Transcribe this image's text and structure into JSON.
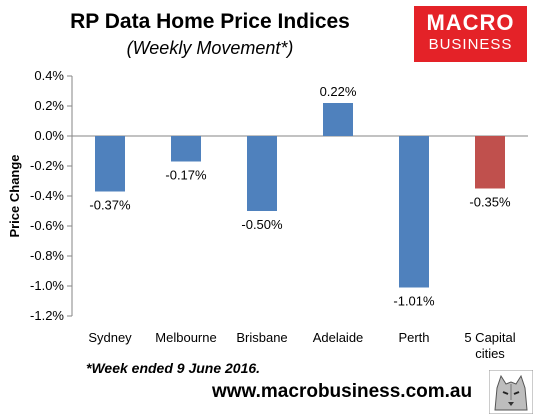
{
  "header": {
    "title": "RP Data Home Price Indices",
    "subtitle": "(Weekly Movement*)"
  },
  "logo": {
    "line1": "MACRO",
    "line2": "BUSINESS",
    "color": "#e42228"
  },
  "footnote": "*Week ended 9 June 2016.",
  "website": "www.macrobusiness.com.au",
  "colors": {
    "city_bar": "#4f81bd",
    "capital_bar": "#c0504d"
  },
  "chart_data": {
    "type": "bar",
    "ylabel": "Price Change",
    "ylim": [
      -1.2,
      0.4
    ],
    "yticks": [
      0.4,
      0.2,
      0.0,
      -0.2,
      -0.4,
      -0.6,
      -0.8,
      -1.0,
      -1.2
    ],
    "ytick_labels": [
      "0.4%",
      "0.2%",
      "0.0%",
      "-0.2%",
      "-0.4%",
      "-0.6%",
      "-0.8%",
      "-1.0%",
      "-1.2%"
    ],
    "categories": [
      [
        "Sydney"
      ],
      [
        "Melbourne"
      ],
      [
        "Brisbane"
      ],
      [
        "Adelaide"
      ],
      [
        "Perth"
      ],
      [
        "5 Capital",
        "cities"
      ]
    ],
    "values": [
      -0.37,
      -0.17,
      -0.5,
      0.22,
      -1.01,
      -0.35
    ],
    "data_labels": [
      "-0.37%",
      "-0.17%",
      "-0.50%",
      "0.22%",
      "-1.01%",
      "-0.35%"
    ],
    "bar_colors": [
      "#4f81bd",
      "#4f81bd",
      "#4f81bd",
      "#4f81bd",
      "#4f81bd",
      "#c0504d"
    ],
    "grid": false,
    "legend": "none"
  }
}
